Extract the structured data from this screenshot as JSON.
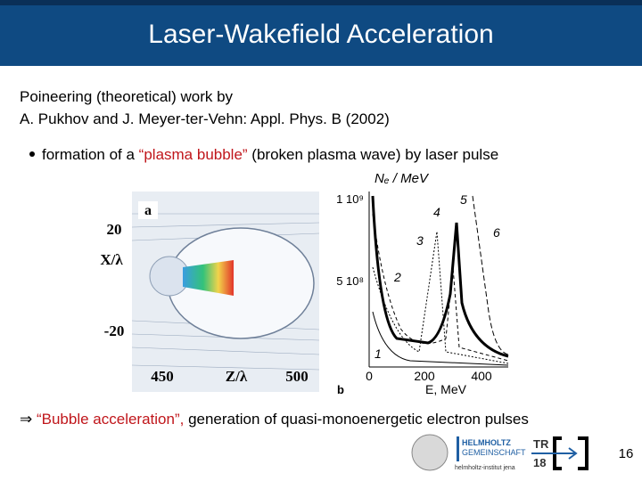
{
  "header": {
    "title": "Laser-Wakefield Acceleration"
  },
  "body": {
    "intro": [
      "Poineering (theoretical) work by",
      "A. Pukhov and J. Meyer-ter-Vehn: Appl. Phys. B (2002)"
    ],
    "bullet": {
      "prefix": "formation of a ",
      "highlight": "“plasma bubble”",
      "suffix": " (broken plasma wave) by laser pulse"
    },
    "conclusion": {
      "symbol": "⇒",
      "highlight": " “Bubble acceleration”,",
      "text": " generation of quasi-monoenergetic electron pulses"
    }
  },
  "figure": {
    "panel_a": {
      "label": "a",
      "y_label": "X/λ",
      "x_label": "Z/λ",
      "y_ticks": [
        "20",
        "-20"
      ],
      "x_ticks": [
        "450",
        "500"
      ]
    },
    "panel_b": {
      "label": "b",
      "y_label": "Nₑ / MeV",
      "x_label": "E, MeV",
      "y_ticks": [
        "1 10⁹",
        "5 10⁸"
      ],
      "x_ticks": [
        "0",
        "200",
        "400"
      ],
      "curves": [
        "1",
        "2",
        "3",
        "4",
        "5",
        "6"
      ]
    }
  },
  "footer": {
    "logo_helmholtz": [
      "HELMHOLTZ",
      "GEMEINSCHAFT"
    ],
    "logo_tr": [
      "TR",
      "18"
    ],
    "institute": "helmholtz-institut jena",
    "page": "16"
  }
}
